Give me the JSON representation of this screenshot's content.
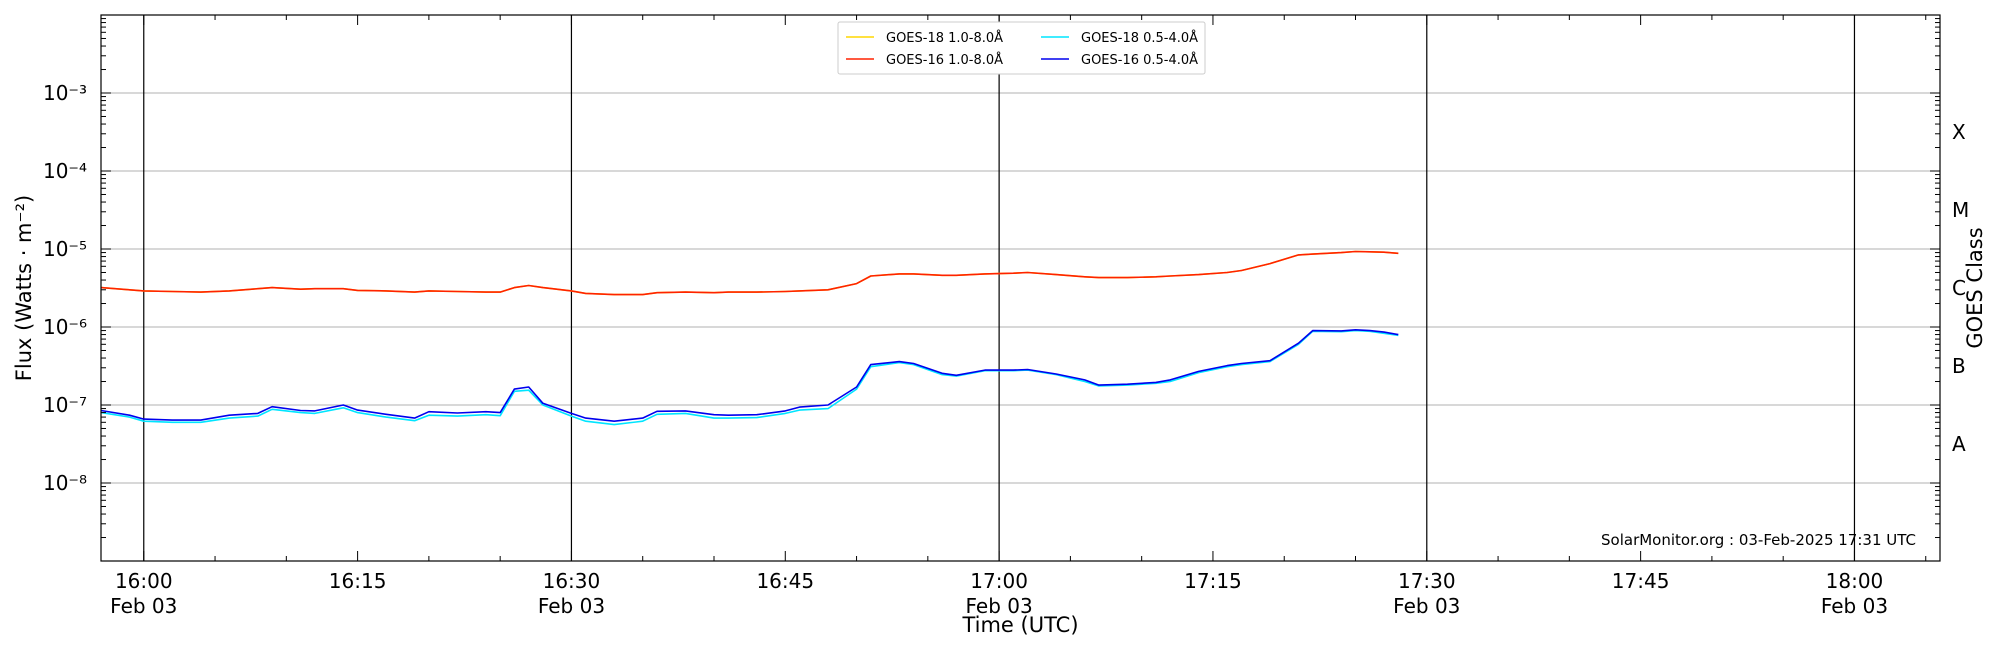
{
  "chart_data": {
    "type": "line",
    "title": "",
    "xlabel": "Time (UTC)",
    "ylabel": "Flux (Watts · m⁻²)",
    "y2label": "GOES Class",
    "yscale": "log",
    "ylim": [
      1e-09,
      0.01
    ],
    "xlim": [
      "15:57",
      "18:06"
    ],
    "grid": "horizontal at decades",
    "legend_position": "top-center",
    "x_ticks": [
      {
        "time": "16:00",
        "label": "16:00",
        "sublabel": "Feb 03",
        "major": true
      },
      {
        "time": "16:15",
        "label": "16:15",
        "sublabel": "",
        "major": false
      },
      {
        "time": "16:30",
        "label": "16:30",
        "sublabel": "Feb 03",
        "major": true
      },
      {
        "time": "16:45",
        "label": "16:45",
        "sublabel": "",
        "major": false
      },
      {
        "time": "17:00",
        "label": "17:00",
        "sublabel": "Feb 03",
        "major": true
      },
      {
        "time": "17:15",
        "label": "17:15",
        "sublabel": "",
        "major": false
      },
      {
        "time": "17:30",
        "label": "17:30",
        "sublabel": "Feb 03",
        "major": true
      },
      {
        "time": "17:45",
        "label": "17:45",
        "sublabel": "",
        "major": false
      },
      {
        "time": "18:00",
        "label": "18:00",
        "sublabel": "Feb 03",
        "major": true
      }
    ],
    "y_ticks": [
      {
        "exp": -8,
        "label": "10⁻⁸"
      },
      {
        "exp": -7,
        "label": "10⁻⁷"
      },
      {
        "exp": -6,
        "label": "10⁻⁶"
      },
      {
        "exp": -5,
        "label": "10⁻⁵"
      },
      {
        "exp": -4,
        "label": "10⁻⁴"
      },
      {
        "exp": -3,
        "label": "10⁻³"
      }
    ],
    "goes_classes": [
      {
        "label": "A",
        "center_exp": -7.5
      },
      {
        "label": "B",
        "center_exp": -6.5
      },
      {
        "label": "C",
        "center_exp": -5.5
      },
      {
        "label": "M",
        "center_exp": -4.5
      },
      {
        "label": "X",
        "center_exp": -3.5
      }
    ],
    "annotation": "SolarMonitor.org : 03-Feb-2025 17:31 UTC",
    "x": [
      "15:57",
      "15:59",
      "16:00",
      "16:02",
      "16:04",
      "16:06",
      "16:08",
      "16:09",
      "16:11",
      "16:12",
      "16:14",
      "16:15",
      "16:17",
      "16:19",
      "16:20",
      "16:22",
      "16:24",
      "16:25",
      "16:26",
      "16:27",
      "16:28",
      "16:30",
      "16:31",
      "16:33",
      "16:35",
      "16:36",
      "16:38",
      "16:40",
      "16:41",
      "16:43",
      "16:45",
      "16:46",
      "16:48",
      "16:50",
      "16:51",
      "16:53",
      "16:54",
      "16:56",
      "16:57",
      "16:59",
      "17:01",
      "17:02",
      "17:04",
      "17:06",
      "17:07",
      "17:09",
      "17:11",
      "17:12",
      "17:14",
      "17:16",
      "17:17",
      "17:19",
      "17:21",
      "17:22",
      "17:24",
      "17:25",
      "17:26",
      "17:27",
      "17:28"
    ],
    "series": [
      {
        "name": "GOES-18 1.0-8.0Å",
        "color": "#ffd700",
        "values": [
          3.2e-06,
          3e-06,
          2.9e-06,
          2.85e-06,
          2.8e-06,
          2.9e-06,
          3.1e-06,
          3.2e-06,
          3.05e-06,
          3.1e-06,
          3.1e-06,
          2.95e-06,
          2.9e-06,
          2.8e-06,
          2.9e-06,
          2.85e-06,
          2.8e-06,
          2.8e-06,
          3.2e-06,
          3.4e-06,
          3.2e-06,
          2.9e-06,
          2.7e-06,
          2.6e-06,
          2.6e-06,
          2.75e-06,
          2.8e-06,
          2.75e-06,
          2.8e-06,
          2.8e-06,
          2.85e-06,
          2.9e-06,
          3e-06,
          3.6e-06,
          4.5e-06,
          4.8e-06,
          4.8e-06,
          4.6e-06,
          4.6e-06,
          4.8e-06,
          4.9e-06,
          5e-06,
          4.7e-06,
          4.4e-06,
          4.3e-06,
          4.3e-06,
          4.4e-06,
          4.5e-06,
          4.7e-06,
          5e-06,
          5.3e-06,
          6.5e-06,
          8.4e-06,
          8.6e-06,
          9e-06,
          9.3e-06,
          9.2e-06,
          9.1e-06,
          8.8e-06
        ]
      },
      {
        "name": "GOES-16 1.0-8.0Å",
        "color": "#ff2200",
        "values": [
          3.2e-06,
          3e-06,
          2.9e-06,
          2.85e-06,
          2.8e-06,
          2.9e-06,
          3.1e-06,
          3.2e-06,
          3.05e-06,
          3.1e-06,
          3.1e-06,
          2.95e-06,
          2.9e-06,
          2.8e-06,
          2.9e-06,
          2.85e-06,
          2.8e-06,
          2.8e-06,
          3.2e-06,
          3.4e-06,
          3.2e-06,
          2.9e-06,
          2.7e-06,
          2.6e-06,
          2.6e-06,
          2.75e-06,
          2.8e-06,
          2.75e-06,
          2.8e-06,
          2.8e-06,
          2.85e-06,
          2.9e-06,
          3e-06,
          3.6e-06,
          4.5e-06,
          4.8e-06,
          4.8e-06,
          4.6e-06,
          4.6e-06,
          4.8e-06,
          4.9e-06,
          5e-06,
          4.7e-06,
          4.4e-06,
          4.3e-06,
          4.3e-06,
          4.4e-06,
          4.5e-06,
          4.7e-06,
          5e-06,
          5.3e-06,
          6.5e-06,
          8.4e-06,
          8.6e-06,
          9e-06,
          9.3e-06,
          9.2e-06,
          9.1e-06,
          8.8e-06
        ]
      },
      {
        "name": "GOES-18 0.5-4.0Å",
        "color": "#00e5ff",
        "values": [
          8e-08,
          7e-08,
          6.2e-08,
          6e-08,
          6e-08,
          6.8e-08,
          7.2e-08,
          8.8e-08,
          8e-08,
          7.8e-08,
          9.2e-08,
          8e-08,
          7e-08,
          6.3e-08,
          7.4e-08,
          7.2e-08,
          7.5e-08,
          7.3e-08,
          1.5e-07,
          1.55e-07,
          1e-07,
          7.2e-08,
          6.2e-08,
          5.6e-08,
          6.2e-08,
          7.6e-08,
          7.8e-08,
          6.8e-08,
          6.8e-08,
          6.9e-08,
          7.8e-08,
          8.6e-08,
          9e-08,
          1.6e-07,
          3.1e-07,
          3.5e-07,
          3.3e-07,
          2.45e-07,
          2.35e-07,
          2.75e-07,
          2.75e-07,
          2.8e-07,
          2.45e-07,
          2e-07,
          1.75e-07,
          1.8e-07,
          1.9e-07,
          2e-07,
          2.6e-07,
          3.1e-07,
          3.3e-07,
          3.6e-07,
          6e-07,
          8.8e-07,
          8.7e-07,
          9e-07,
          8.8e-07,
          8.3e-07,
          7.8e-07
        ]
      },
      {
        "name": "GOES-16 0.5-4.0Å",
        "color": "#0000ee",
        "values": [
          8.5e-08,
          7.4e-08,
          6.6e-08,
          6.4e-08,
          6.4e-08,
          7.4e-08,
          7.8e-08,
          9.5e-08,
          8.5e-08,
          8.4e-08,
          1e-07,
          8.6e-08,
          7.6e-08,
          6.8e-08,
          8.2e-08,
          7.9e-08,
          8.2e-08,
          8e-08,
          1.6e-07,
          1.7e-07,
          1.05e-07,
          7.8e-08,
          6.8e-08,
          6.2e-08,
          6.8e-08,
          8.3e-08,
          8.4e-08,
          7.5e-08,
          7.4e-08,
          7.5e-08,
          8.4e-08,
          9.4e-08,
          1e-07,
          1.7e-07,
          3.3e-07,
          3.6e-07,
          3.4e-07,
          2.55e-07,
          2.4e-07,
          2.8e-07,
          2.8e-07,
          2.85e-07,
          2.5e-07,
          2.1e-07,
          1.8e-07,
          1.85e-07,
          1.95e-07,
          2.1e-07,
          2.7e-07,
          3.2e-07,
          3.4e-07,
          3.7e-07,
          6.2e-07,
          9e-07,
          8.9e-07,
          9.2e-07,
          9e-07,
          8.6e-07,
          8e-07
        ]
      }
    ]
  }
}
